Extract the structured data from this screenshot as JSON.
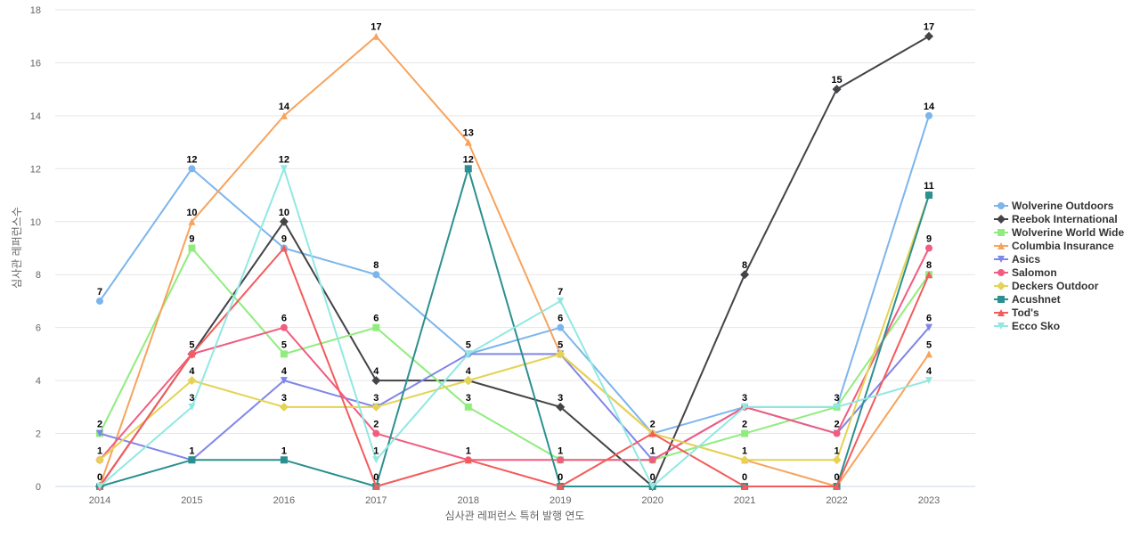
{
  "chart_data": {
    "type": "line",
    "title": "",
    "xlabel": "심사관 레퍼런스 특허 발행 연도",
    "ylabel": "심사관 레퍼런스수",
    "x": [
      "2014",
      "2015",
      "2016",
      "2017",
      "2018",
      "2019",
      "2020",
      "2021",
      "2022",
      "2023"
    ],
    "ylim": [
      0,
      18
    ],
    "yticks": [
      0,
      2,
      4,
      6,
      8,
      10,
      12,
      14,
      16,
      18
    ],
    "grid": true,
    "legend_position": "right",
    "series": [
      {
        "name": "Wolverine Outdoors",
        "color": "#7cb5ec",
        "marker": "circle",
        "values": [
          7,
          12,
          9,
          8,
          5,
          6,
          2,
          3,
          3,
          14
        ]
      },
      {
        "name": "Reebok International",
        "color": "#434348",
        "marker": "diamond",
        "values": [
          0,
          5,
          10,
          4,
          4,
          3,
          0,
          8,
          15,
          17
        ]
      },
      {
        "name": "Wolverine World Wide",
        "color": "#90ed7d",
        "marker": "square",
        "values": [
          2,
          9,
          5,
          6,
          3,
          1,
          1,
          2,
          3,
          8
        ]
      },
      {
        "name": "Columbia Insurance",
        "color": "#f7a35c",
        "marker": "triangle",
        "values": [
          0,
          10,
          14,
          17,
          13,
          5,
          2,
          1,
          0,
          5
        ]
      },
      {
        "name": "Asics",
        "color": "#8085e9",
        "marker": "triangle-down",
        "values": [
          2,
          1,
          4,
          3,
          5,
          5,
          1,
          3,
          2,
          6
        ]
      },
      {
        "name": "Salomon",
        "color": "#f15c80",
        "marker": "circle",
        "values": [
          1,
          5,
          6,
          2,
          1,
          1,
          1,
          3,
          2,
          9
        ]
      },
      {
        "name": "Deckers Outdoor",
        "color": "#e4d354",
        "marker": "diamond",
        "values": [
          1,
          4,
          3,
          3,
          4,
          5,
          2,
          1,
          1,
          11
        ]
      },
      {
        "name": "Acushnet",
        "color": "#2b908f",
        "marker": "square",
        "values": [
          0,
          1,
          1,
          0,
          12,
          0,
          0,
          0,
          0,
          11
        ]
      },
      {
        "name": "Tod's",
        "color": "#f45b5b",
        "marker": "triangle",
        "values": [
          0,
          5,
          9,
          0,
          1,
          0,
          2,
          0,
          0,
          8
        ]
      },
      {
        "name": "Ecco Sko",
        "color": "#91e8e1",
        "marker": "triangle-down",
        "values": [
          0,
          3,
          12,
          1,
          5,
          7,
          0,
          3,
          3,
          4
        ]
      }
    ]
  }
}
